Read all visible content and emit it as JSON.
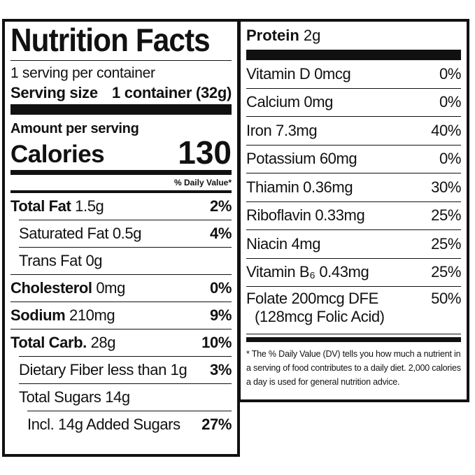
{
  "label": {
    "title": "Nutrition Facts",
    "servings": "1 serving per container",
    "serving_size_label": "Serving size",
    "serving_size": "1 container (32g)",
    "amount_per_serving": "Amount per serving",
    "calories_label": "Calories",
    "calories": "130",
    "dv_header": "% Daily Value*",
    "nutrients": [
      {
        "name": "Total Fat",
        "amount": "1.5g",
        "dv": "2%",
        "sub": [
          {
            "name": "Saturated Fat",
            "amount": "0.5g",
            "dv": "4%"
          },
          {
            "name": "Trans Fat",
            "amount": "0g"
          }
        ]
      },
      {
        "name": "Cholesterol",
        "amount": "0mg",
        "dv": "0%"
      },
      {
        "name": "Sodium",
        "amount": "210mg",
        "dv": "9%"
      },
      {
        "name": "Total Carb.",
        "amount": "28g",
        "dv": "10%",
        "sub": [
          {
            "name": "Dietary Fiber",
            "amount": "less than 1g",
            "dv": "3%"
          },
          {
            "name": "Total Sugars",
            "amount": "14g",
            "sub": [
              {
                "name": "Incl. 14g Added Sugars",
                "dv": "27%"
              }
            ]
          }
        ]
      }
    ],
    "protein": {
      "name": "Protein",
      "amount": "2g"
    },
    "vitamins": [
      {
        "name": "Vitamin D",
        "amount": "0mcg",
        "dv": "0%"
      },
      {
        "name": "Calcium",
        "amount": "0mg",
        "dv": "0%"
      },
      {
        "name": "Iron",
        "amount": "7.3mg",
        "dv": "40%"
      },
      {
        "name": "Potassium",
        "amount": "60mg",
        "dv": "0%"
      },
      {
        "name": "Thiamin",
        "amount": "0.36mg",
        "dv": "30%"
      },
      {
        "name": "Riboflavin",
        "amount": "0.33mg",
        "dv": "25%"
      },
      {
        "name": "Niacin",
        "amount": "4mg",
        "dv": "25%"
      },
      {
        "name": "Vitamin B₆",
        "amount": "0.43mg",
        "dv": "25%"
      },
      {
        "name": "Folate",
        "amount": "200mcg DFE",
        "dv": "50%",
        "note": "(128mcg Folic Acid)"
      }
    ],
    "footnote": "* The % Daily Value (DV) tells you how much a nutrient in a serving of food contributes to a daily diet. 2,000 calories a day is used for general nutrition advice."
  }
}
